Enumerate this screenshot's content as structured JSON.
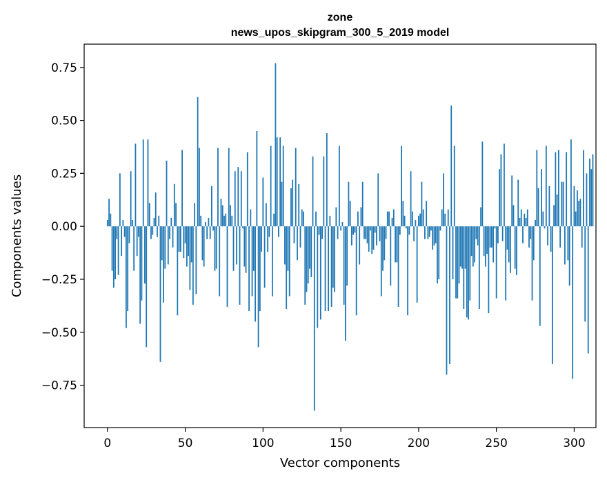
{
  "chart_data": {
    "type": "bar",
    "title_line1": "zone",
    "title_line2": "news_upos_skipgram_300_5_2019 model",
    "xlabel": "Vector components",
    "ylabel": "Components values",
    "xlim": [
      -15,
      314
    ],
    "ylim": [
      -0.95,
      0.86
    ],
    "xticks": [
      0,
      50,
      100,
      150,
      200,
      250,
      300
    ],
    "xtick_labels": [
      "0",
      "50",
      "100",
      "150",
      "200",
      "250",
      "300"
    ],
    "yticks": [
      -0.75,
      -0.5,
      -0.25,
      0.0,
      0.25,
      0.5,
      0.75
    ],
    "ytick_labels": [
      "−0.75",
      "−0.50",
      "−0.25",
      "0.00",
      "0.25",
      "0.50",
      "0.75"
    ],
    "bar_color": "#1f77b4",
    "values": [
      0.03,
      0.13,
      0.06,
      -0.21,
      -0.29,
      -0.25,
      -0.06,
      -0.23,
      0.25,
      -0.14,
      0.03,
      -0.05,
      -0.48,
      -0.4,
      -0.08,
      0.26,
      0.03,
      -0.21,
      0.39,
      -0.14,
      -0.05,
      -0.46,
      -0.35,
      0.41,
      -0.27,
      -0.57,
      0.41,
      0.11,
      -0.06,
      -0.04,
      0.04,
      0.16,
      -0.05,
      0.05,
      -0.64,
      -0.16,
      -0.36,
      -0.2,
      0.31,
      -0.18,
      -0.06,
      0.04,
      -0.1,
      0.2,
      0.11,
      -0.42,
      -0.12,
      -0.12,
      0.36,
      -0.15,
      -0.08,
      -0.19,
      -0.14,
      -0.3,
      -0.17,
      -0.37,
      0.11,
      -0.32,
      0.61,
      0.37,
      0.05,
      -0.16,
      -0.19,
      0.02,
      -0.06,
      0.04,
      -0.06,
      0.19,
      -0.02,
      -0.21,
      -0.2,
      0.37,
      -0.33,
      0.13,
      0.1,
      0.05,
      0.06,
      -0.38,
      0.37,
      0.1,
      0.05,
      -0.21,
      0.26,
      -0.18,
      0.28,
      -0.37,
      0.26,
      -0.01,
      -0.19,
      -0.22,
      0.35,
      -0.4,
      0.08,
      -0.33,
      -0.21,
      -0.45,
      0.45,
      -0.57,
      -0.4,
      -0.12,
      0.23,
      -0.29,
      0.11,
      -0.12,
      -0.05,
      0.38,
      -0.33,
      0.06,
      0.77,
      0.42,
      -0.05,
      0.42,
      0.21,
      0.38,
      -0.18,
      -0.39,
      -0.21,
      -0.33,
      0.18,
      0.22,
      -0.08,
      0.37,
      -0.16,
      0.2,
      -0.1,
      0.08,
      0.07,
      -0.37,
      -0.31,
      -0.27,
      -0.2,
      -0.24,
      0.33,
      -0.87,
      0.07,
      -0.48,
      -0.04,
      -0.44,
      -0.06,
      0.33,
      -0.4,
      0.44,
      -0.4,
      0.05,
      -0.38,
      -0.29,
      -0.31,
      0.09,
      -0.06,
      0.38,
      -0.02,
      0.02,
      -0.37,
      -0.54,
      -0.28,
      0.21,
      0.12,
      -0.09,
      -0.04,
      -0.03,
      -0.42,
      0.07,
      -0.18,
      0.09,
      0.21,
      -0.06,
      -0.06,
      -0.08,
      -0.12,
      -0.02,
      -0.13,
      -0.11,
      -0.03,
      -0.09,
      0.25,
      -0.07,
      -0.33,
      -0.21,
      -0.16,
      -0.06,
      0.07,
      0.07,
      -0.28,
      0.04,
      0.08,
      -0.17,
      -0.17,
      -0.38,
      -0.04,
      0.38,
      0.12,
      0.05,
      -0.01,
      -0.42,
      -0.04,
      0.26,
      0.07,
      -0.07,
      0.03,
      -0.36,
      0.05,
      0.06,
      0.21,
      0.08,
      -0.06,
      0.12,
      -0.06,
      -0.05,
      -0.02,
      -0.11,
      -0.09,
      -0.08,
      -0.27,
      -0.25,
      -0.02,
      0.08,
      0.25,
      0.06,
      -0.7,
      0.08,
      -0.65,
      0.57,
      -0.25,
      0.38,
      -0.34,
      -0.34,
      -0.27,
      -0.19,
      -0.2,
      -0.39,
      -0.2,
      -0.43,
      -0.44,
      -0.35,
      -0.14,
      -0.19,
      -0.17,
      -0.06,
      -0.09,
      -0.39,
      0.09,
      0.4,
      -0.14,
      -0.19,
      -0.13,
      -0.41,
      -0.1,
      -0.1,
      -0.17,
      -0.01,
      -0.34,
      -0.08,
      0.27,
      0.34,
      -0.07,
      0.39,
      -0.35,
      -0.11,
      -0.17,
      -0.22,
      0.24,
      0.1,
      -0.2,
      -0.23,
      0.22,
      0.04,
      0.08,
      -0.08,
      0.06,
      0.04,
      0.08,
      -0.1,
      -0.06,
      -0.35,
      -0.16,
      0.03,
      0.36,
      0.18,
      -0.47,
      0.27,
      0.07,
      -0.01,
      0.38,
      -0.09,
      0.19,
      -0.12,
      -0.65,
      0.1,
      0.35,
      0.15,
      0.36,
      -0.1,
      0.21,
      0.21,
      -0.18,
      0.35,
      -0.16,
      -0.28,
      0.41,
      -0.72,
      0.19,
      0.07,
      0.17,
      0.12,
      0.13,
      -0.1,
      0.36,
      -0.45,
      0.25,
      -0.6,
      0.32,
      0.27,
      0.34
    ]
  }
}
